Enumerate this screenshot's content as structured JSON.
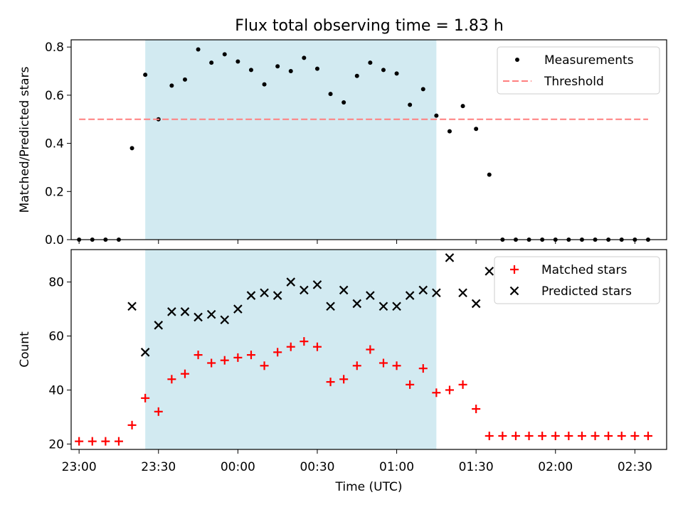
{
  "title": "Flux total observing time = 1.83 h",
  "chart_data": [
    {
      "type": "scatter",
      "panel": "top",
      "ylabel": "Matched/Predicted stars",
      "ylim": [
        0,
        0.83
      ],
      "yticks": [
        0.0,
        0.2,
        0.4,
        0.6,
        0.8
      ],
      "ytick_labels": [
        "0.0",
        "0.2",
        "0.4",
        "0.6",
        "0.8"
      ],
      "xlim": [
        "22:57",
        "02:42"
      ],
      "highlight_span": [
        "23:25",
        "01:15"
      ],
      "highlight_color": "#add8e6",
      "legend": {
        "placement": "top-right",
        "entries": [
          "Measurements",
          "Threshold"
        ]
      },
      "series": [
        {
          "name": "Measurements",
          "marker": "dot",
          "color": "#000000",
          "x": [
            "23:00",
            "23:05",
            "23:10",
            "23:15",
            "23:20",
            "23:25",
            "23:30",
            "23:35",
            "23:40",
            "23:45",
            "23:50",
            "23:55",
            "00:00",
            "00:05",
            "00:10",
            "00:15",
            "00:20",
            "00:25",
            "00:30",
            "00:35",
            "00:40",
            "00:45",
            "00:50",
            "00:55",
            "01:00",
            "01:05",
            "01:10",
            "01:15",
            "01:20",
            "01:25",
            "01:30",
            "01:35",
            "01:40",
            "01:45",
            "01:50",
            "01:55",
            "02:00",
            "02:05",
            "02:10",
            "02:15",
            "02:20",
            "02:25",
            "02:30",
            "02:35"
          ],
          "y": [
            0.0,
            0.0,
            0.0,
            0.0,
            0.38,
            0.685,
            0.5,
            0.64,
            0.665,
            0.79,
            0.735,
            0.77,
            0.74,
            0.705,
            0.645,
            0.72,
            0.7,
            0.755,
            0.71,
            0.605,
            0.57,
            0.68,
            0.735,
            0.705,
            0.69,
            0.56,
            0.625,
            0.515,
            0.45,
            0.555,
            0.46,
            0.27,
            0.0,
            0.0,
            0.0,
            0.0,
            0.0,
            0.0,
            0.0,
            0.0,
            0.0,
            0.0,
            0.0,
            0.0
          ]
        },
        {
          "name": "Threshold",
          "style": "dashed",
          "color": "#ff7f7f",
          "x": [
            "23:00",
            "02:35"
          ],
          "y": [
            0.5,
            0.5
          ]
        }
      ]
    },
    {
      "type": "scatter",
      "panel": "bottom",
      "xlabel": "Time (UTC)",
      "ylabel": "Count",
      "ylim": [
        18,
        92
      ],
      "yticks": [
        20,
        40,
        60,
        80
      ],
      "ytick_labels": [
        "20",
        "40",
        "60",
        "80"
      ],
      "xlim": [
        "22:57",
        "02:42"
      ],
      "xticks": [
        "23:00",
        "23:30",
        "00:00",
        "00:30",
        "01:00",
        "01:30",
        "02:00",
        "02:30"
      ],
      "highlight_span": [
        "23:25",
        "01:15"
      ],
      "highlight_color": "#add8e6",
      "legend": {
        "placement": "top-right",
        "entries": [
          "Matched stars",
          "Predicted stars"
        ]
      },
      "series": [
        {
          "name": "Matched stars",
          "marker": "plus",
          "color": "#ff0000",
          "x": [
            "23:00",
            "23:05",
            "23:10",
            "23:15",
            "23:20",
            "23:25",
            "23:30",
            "23:35",
            "23:40",
            "23:45",
            "23:50",
            "23:55",
            "00:00",
            "00:05",
            "00:10",
            "00:15",
            "00:20",
            "00:25",
            "00:30",
            "00:35",
            "00:40",
            "00:45",
            "00:50",
            "00:55",
            "01:00",
            "01:05",
            "01:10",
            "01:15",
            "01:20",
            "01:25",
            "01:30",
            "01:35",
            "01:40",
            "01:45",
            "01:50",
            "01:55",
            "02:00",
            "02:05",
            "02:10",
            "02:15",
            "02:20",
            "02:25",
            "02:30",
            "02:35"
          ],
          "y": [
            21,
            21,
            21,
            21,
            27,
            37,
            32,
            44,
            46,
            53,
            50,
            51,
            52,
            53,
            49,
            54,
            56,
            58,
            56,
            43,
            44,
            49,
            55,
            50,
            49,
            42,
            48,
            39,
            40,
            42,
            33,
            23,
            23,
            23,
            23,
            23,
            23,
            23,
            23,
            23,
            23,
            23,
            23,
            23
          ]
        },
        {
          "name": "Predicted stars",
          "marker": "x",
          "color": "#000000",
          "x": [
            "23:20",
            "23:25",
            "23:30",
            "23:35",
            "23:40",
            "23:45",
            "23:50",
            "23:55",
            "00:00",
            "00:05",
            "00:10",
            "00:15",
            "00:20",
            "00:25",
            "00:30",
            "00:35",
            "00:40",
            "00:45",
            "00:50",
            "00:55",
            "01:00",
            "01:05",
            "01:10",
            "01:15",
            "01:20",
            "01:25",
            "01:30",
            "01:35"
          ],
          "y": [
            71,
            54,
            64,
            69,
            69,
            67,
            68,
            66,
            70,
            75,
            76,
            75,
            80,
            77,
            79,
            71,
            77,
            72,
            75,
            71,
            71,
            75,
            77,
            76,
            89,
            76,
            72,
            84
          ]
        }
      ]
    }
  ]
}
